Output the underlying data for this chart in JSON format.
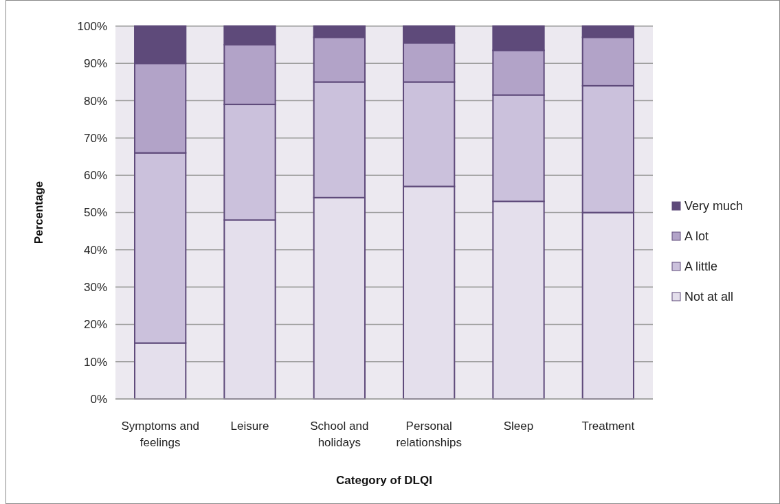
{
  "chart_data": {
    "type": "bar",
    "stacked": true,
    "xlabel": "Category of DLQI",
    "ylabel": "Percentage",
    "categories": [
      "Symptoms and feelings",
      "Leisure",
      "School and holidays",
      "Personal relationships",
      "Sleep",
      "Treatment"
    ],
    "series": [
      {
        "name": "Not at all",
        "color": "#e4dfec",
        "values": [
          15,
          48,
          54,
          57,
          53,
          50
        ]
      },
      {
        "name": "A little",
        "color": "#cbc1dc",
        "values": [
          51,
          31,
          31,
          28,
          28.5,
          34
        ]
      },
      {
        "name": "A lot",
        "color": "#b2a3c8",
        "values": [
          24,
          16,
          12,
          10.5,
          12,
          13
        ]
      },
      {
        "name": "Very much",
        "color": "#5e4a7a",
        "values": [
          10,
          5,
          3,
          4.5,
          6.5,
          3
        ]
      }
    ],
    "ylim": [
      0,
      100
    ],
    "yticks": [
      {
        "value": 0,
        "label": "0%"
      },
      {
        "value": 10,
        "label": "10%"
      },
      {
        "value": 20,
        "label": "20%"
      },
      {
        "value": 30,
        "label": "30%"
      },
      {
        "value": 40,
        "label": "40%"
      },
      {
        "value": 50,
        "label": "50%"
      },
      {
        "value": 60,
        "label": "60%"
      },
      {
        "value": 70,
        "label": "70%"
      },
      {
        "value": 80,
        "label": "80%"
      },
      {
        "value": 90,
        "label": "90%"
      },
      {
        "value": 100,
        "label": "100%"
      }
    ],
    "grid": "y",
    "legend": "right"
  }
}
